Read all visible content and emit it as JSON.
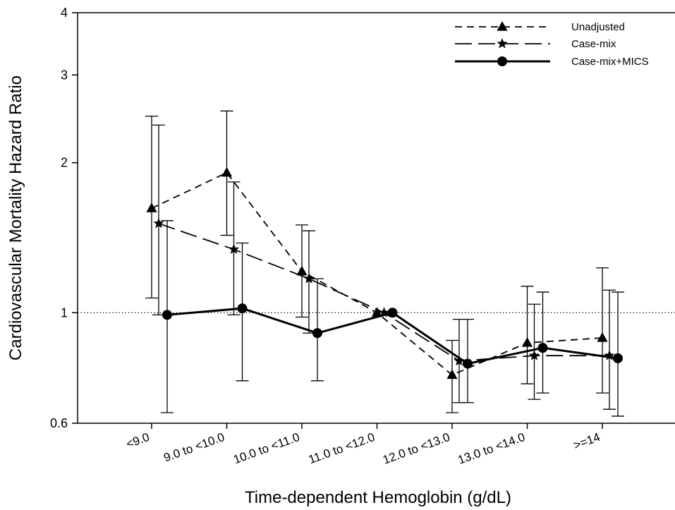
{
  "chart_data": {
    "type": "line",
    "xlabel": "Time-dependent Hemoglobin (g/dL)",
    "ylabel": "Cardiovascular Mortality Hazard Ratio",
    "y_scale": "log",
    "ylim": [
      0.6,
      4
    ],
    "yticks": [
      0.6,
      1,
      2,
      3,
      4
    ],
    "ytick_labels": [
      "0.6",
      "1",
      "2",
      "3",
      "4"
    ],
    "reference_line": 1,
    "categories": [
      "<9.0",
      "9.0 to <10.0",
      "10.0 to <11.0",
      "11.0 to <12.0",
      "12.0 to <13.0",
      "13.0 to <14.0",
      ">=14"
    ],
    "legend_position": "top-right",
    "series": [
      {
        "name": "Unadjusted",
        "marker": "triangle",
        "dash": "short-dash",
        "values": [
          1.62,
          1.91,
          1.21,
          1.0,
          0.75,
          0.87,
          0.89
        ],
        "lower": [
          1.07,
          1.43,
          0.98,
          1.0,
          0.63,
          0.72,
          0.69
        ],
        "upper": [
          2.48,
          2.54,
          1.5,
          1.0,
          0.88,
          1.13,
          1.23
        ]
      },
      {
        "name": "Case-mix",
        "marker": "star",
        "dash": "long-dash",
        "values": [
          1.51,
          1.34,
          1.17,
          1.0,
          0.8,
          0.82,
          0.82
        ],
        "lower": [
          0.99,
          0.99,
          0.91,
          1.0,
          0.66,
          0.67,
          0.64
        ],
        "upper": [
          2.38,
          1.83,
          1.46,
          1.0,
          0.97,
          1.04,
          1.11
        ]
      },
      {
        "name": "Case-mix+MICS",
        "marker": "circle",
        "dash": "solid",
        "values": [
          0.99,
          1.02,
          0.91,
          1.0,
          0.79,
          0.85,
          0.81
        ],
        "lower": [
          0.63,
          0.73,
          0.73,
          1.0,
          0.66,
          0.69,
          0.62
        ],
        "upper": [
          1.53,
          1.38,
          1.17,
          1.0,
          0.97,
          1.1,
          1.1
        ]
      }
    ]
  }
}
